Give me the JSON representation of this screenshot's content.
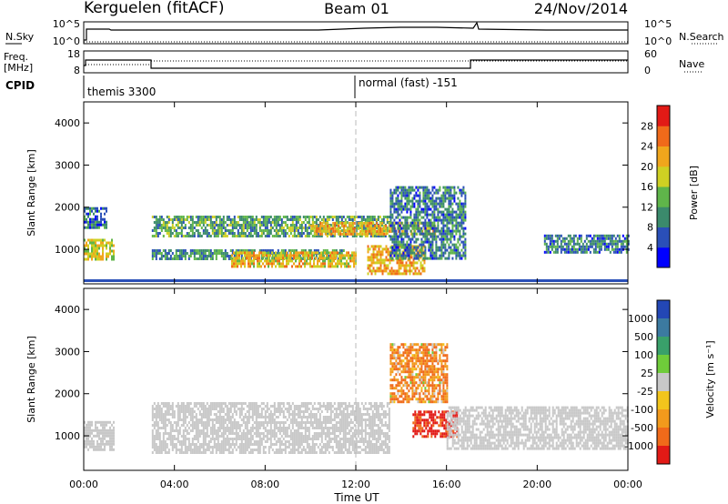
{
  "header": {
    "station": "Kerguelen (fitACF)",
    "beam": "Beam 01",
    "date": "24/Nov/2014"
  },
  "noise_panel": {
    "left_label": "N.Sky",
    "right_label": "N.Search",
    "left_ticks": [
      "10^5",
      "10^0"
    ],
    "right_ticks": [
      "10^5",
      "10^0"
    ]
  },
  "freq_panel": {
    "left_label_1": "Freq.",
    "left_label_2": "[MHz]",
    "right_label": "Nave",
    "left_ticks": [
      "18",
      "8"
    ],
    "right_ticks": [
      "60",
      "0"
    ]
  },
  "cpid": {
    "label": "CPID",
    "segments": [
      {
        "text": "themis 3300"
      },
      {
        "text": "normal (fast) -151"
      }
    ]
  },
  "axes": {
    "ylabel": "Slant Range [km]",
    "xlabel": "Time UT",
    "yticks": [
      "1000",
      "2000",
      "3000",
      "4000"
    ],
    "xticks": [
      "00:00",
      "04:00",
      "08:00",
      "12:00",
      "16:00",
      "20:00",
      "00:00"
    ]
  },
  "power_colorbar": {
    "label": "Power [dB]",
    "ticks": [
      "4",
      "8",
      "12",
      "16",
      "20",
      "24",
      "28"
    ],
    "colors": [
      "#0000ff",
      "#2a4fb8",
      "#3b8a6c",
      "#5fb54a",
      "#cfd023",
      "#f0a61c",
      "#f06a1a",
      "#e21a16"
    ]
  },
  "velocity_colorbar": {
    "label": "Velocity [m s⁻¹]",
    "ticks": [
      "1000",
      "500",
      "100",
      "25",
      "-25",
      "-100",
      "-500",
      "-1000"
    ],
    "colors": [
      "#2347b5",
      "#3c7aa0",
      "#39a06a",
      "#6fcc3a",
      "#c8c8c8",
      "#f2c51c",
      "#f29a1c",
      "#f06a1a",
      "#e21a16"
    ]
  },
  "chart_data": [
    {
      "type": "heatmap",
      "title": "Power",
      "xlabel": "Time UT",
      "ylabel": "Slant Range [km]",
      "xlim": [
        0,
        24
      ],
      "ylim": [
        180,
        4500
      ],
      "colorbar": {
        "label": "Power [dB]",
        "range": [
          0,
          32
        ]
      },
      "bands": [
        {
          "t0": 0.0,
          "t1": 1.3,
          "r0": 750,
          "r1": 1250,
          "value": 18
        },
        {
          "t0": 0.0,
          "t1": 1.0,
          "r0": 1500,
          "r1": 2000,
          "value": 8
        },
        {
          "t0": 3.0,
          "t1": 13.5,
          "r0": 1300,
          "r1": 1800,
          "value": 12
        },
        {
          "t0": 10.0,
          "t1": 15.5,
          "r0": 1350,
          "r1": 1650,
          "value": 22
        },
        {
          "t0": 3.0,
          "t1": 11.5,
          "r0": 750,
          "r1": 1000,
          "value": 10
        },
        {
          "t0": 6.5,
          "t1": 12.0,
          "r0": 600,
          "r1": 950,
          "value": 20
        },
        {
          "t0": 12.5,
          "t1": 15.0,
          "r0": 400,
          "r1": 1100,
          "value": 22
        },
        {
          "t0": 13.5,
          "t1": 16.8,
          "r0": 800,
          "r1": 2500,
          "value": 9
        },
        {
          "t0": 20.3,
          "t1": 24.0,
          "r0": 900,
          "r1": 1350,
          "value": 9
        }
      ]
    },
    {
      "type": "heatmap",
      "title": "Velocity",
      "xlabel": "Time UT",
      "ylabel": "Slant Range [km]",
      "xlim": [
        0,
        24
      ],
      "ylim": [
        180,
        4500
      ],
      "colorbar": {
        "label": "Velocity [m s⁻¹]",
        "range": [
          -1000,
          1000
        ]
      },
      "bands": [
        {
          "t0": 0.0,
          "t1": 1.3,
          "r0": 700,
          "r1": 1350,
          "value": 0
        },
        {
          "t0": 3.0,
          "t1": 13.5,
          "r0": 600,
          "r1": 1800,
          "value": 0
        },
        {
          "t0": 13.5,
          "t1": 16.0,
          "r0": 1800,
          "r1": 3200,
          "value": -300
        },
        {
          "t0": 14.5,
          "t1": 16.5,
          "r0": 1000,
          "r1": 1600,
          "value": -900
        },
        {
          "t0": 16.0,
          "t1": 24.0,
          "r0": 700,
          "r1": 1700,
          "value": 0
        }
      ]
    }
  ]
}
